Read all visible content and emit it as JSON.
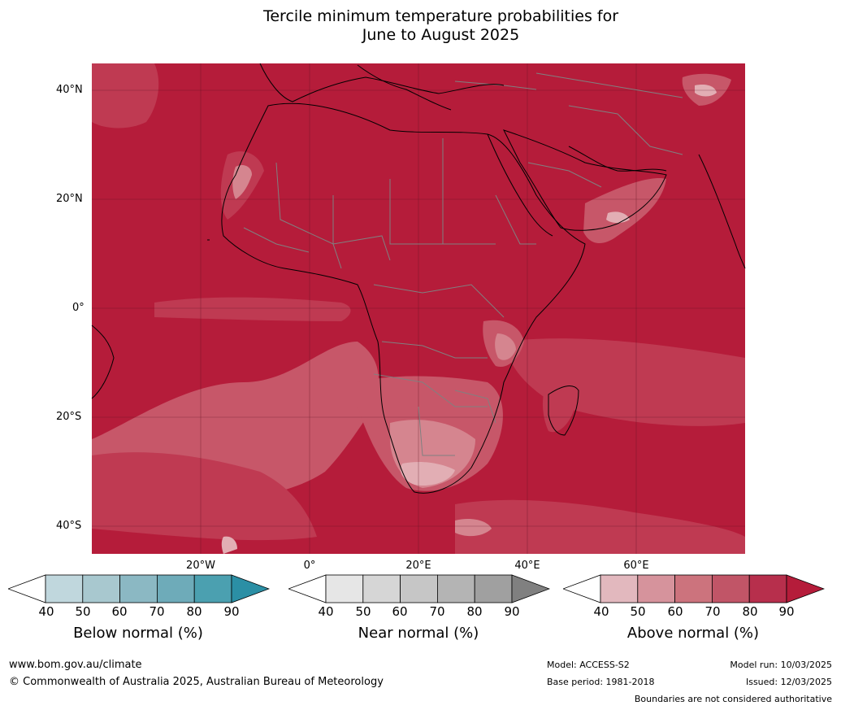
{
  "title": {
    "line1": "Tercile minimum temperature probabilities for",
    "line2": "June to August 2025"
  },
  "map": {
    "lat_labels": [
      "40°N",
      "20°N",
      "0°",
      "20°S",
      "40°S"
    ],
    "lon_labels": [
      "20°W",
      "0°",
      "20°E",
      "40°E",
      "60°E"
    ],
    "colors": {
      "above_90": "#b51c3a",
      "above_80": "#bf3a52",
      "above_70": "#c75769",
      "above_60": "#d5858f",
      "above_50": "#e2aeb4",
      "above_40": "#f1dde0",
      "coast": "#000000",
      "border": "#808080",
      "grid": "#5a1020"
    }
  },
  "colorbars": {
    "ticks": [
      "40",
      "50",
      "60",
      "70",
      "80",
      "90"
    ],
    "below": {
      "label": "Below normal (%)",
      "colors": [
        "#ffffff",
        "#c0d7dd",
        "#a8c8cf",
        "#8bb8c3",
        "#6eabb9",
        "#4ba0b0",
        "#2b8fa5"
      ]
    },
    "near": {
      "label": "Near normal (%)",
      "colors": [
        "#ffffff",
        "#e6e6e6",
        "#d6d6d6",
        "#c6c6c6",
        "#b4b4b4",
        "#a0a0a0",
        "#808080"
      ]
    },
    "above": {
      "label": "Above normal (%)",
      "colors": [
        "#ffffff",
        "#e2b8be",
        "#d6939c",
        "#cc737d",
        "#c15567",
        "#b72f4c",
        "#b51c3a"
      ]
    }
  },
  "footer": {
    "url": "www.bom.gov.au/climate",
    "copyright": "© Commonwealth of Australia 2025, Australian Bureau of Meteorology",
    "model": "Model: ACCESS-S2",
    "base_period": "Base period: 1981-2018",
    "model_run": "Model run: 10/03/2025",
    "issued": "Issued: 12/03/2025",
    "disclaimer": "Boundaries are not considered authoritative"
  }
}
